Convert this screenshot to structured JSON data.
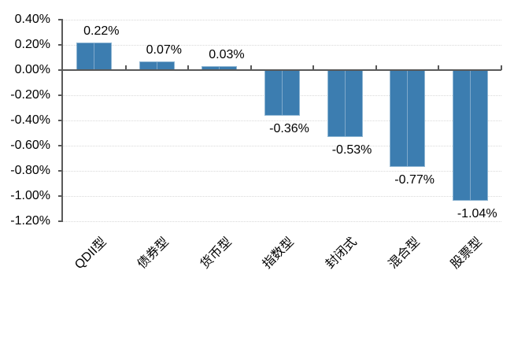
{
  "chart_data": {
    "type": "bar",
    "title": "",
    "xlabel": "",
    "ylabel": "",
    "categories": [
      "QDII型",
      "债券型",
      "货币型",
      "指数型",
      "封闭式",
      "混合型",
      "股票型"
    ],
    "values": [
      0.22,
      0.07,
      0.03,
      -0.36,
      -0.53,
      -0.77,
      -1.04
    ],
    "data_labels": [
      "0.22%",
      "0.07%",
      "0.03%",
      "-0.36%",
      "-0.53%",
      "-0.77%",
      "-1.04%"
    ],
    "y_ticks": [
      0.4,
      0.2,
      0.0,
      -0.2,
      -0.4,
      -0.6,
      -0.8,
      -1.0,
      -1.2
    ],
    "y_tick_labels": [
      "0.40%",
      "0.20%",
      "0.00%",
      "-0.20%",
      "-0.40%",
      "-0.60%",
      "-0.80%",
      "-1.00%",
      "-1.20%"
    ],
    "ylim": [
      -1.2,
      0.4
    ],
    "legend": "none",
    "grid": "horizontal-dotted",
    "colors": {
      "bar_fill": "#3C7DB0",
      "bar_border": "#8FB6D3",
      "bar_center_seam": "#7FA9CB",
      "axis": "#595959",
      "gridline": "#D9D9D9",
      "text": "#000000",
      "background": "#FFFFFF"
    }
  }
}
